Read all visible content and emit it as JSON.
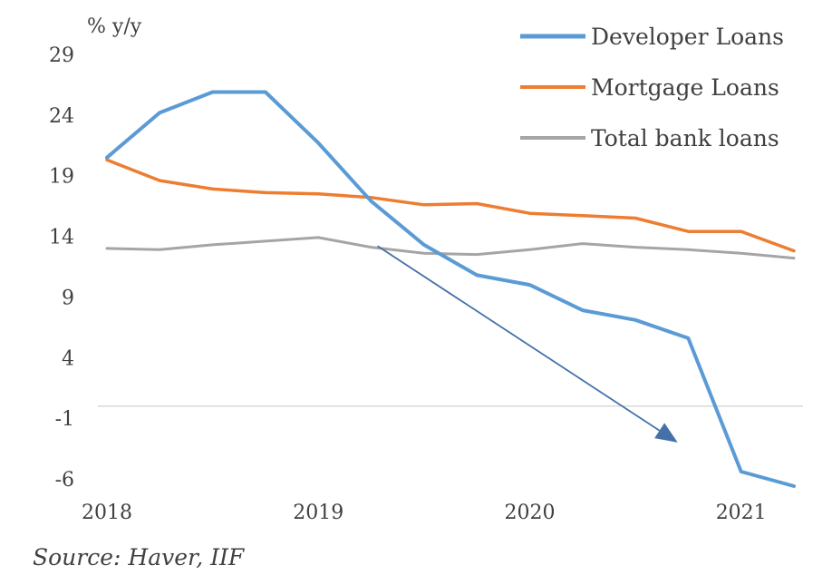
{
  "chart_data": {
    "type": "line",
    "unit_label": "% y/y",
    "ylim": [
      -6,
      29
    ],
    "y_ticks": [
      "29",
      "24",
      "19",
      "14",
      "9",
      "4",
      "-1",
      "-6"
    ],
    "x_ticks": [
      "2018",
      "2019",
      "2020",
      "2021"
    ],
    "x": [
      2018.0,
      2018.25,
      2018.5,
      2018.75,
      2019.0,
      2019.25,
      2019.5,
      2019.75,
      2020.0,
      2020.25,
      2020.5,
      2020.75,
      2021.0,
      2021.25
    ],
    "series": [
      {
        "name": "Developer Loans",
        "color": "#5B9BD5",
        "values": [
          20.5,
          24.2,
          25.9,
          25.9,
          21.7,
          16.9,
          13.3,
          10.8,
          10.0,
          7.9,
          7.1,
          5.6,
          -5.4,
          -6.6
        ]
      },
      {
        "name": "Mortgage Loans",
        "color": "#ED7D31",
        "values": [
          20.3,
          18.6,
          17.9,
          17.6,
          17.5,
          17.2,
          16.6,
          16.7,
          15.9,
          15.7,
          15.5,
          14.4,
          14.4,
          12.8
        ]
      },
      {
        "name": "Total bank loans",
        "color": "#A5A5A5",
        "values": [
          13.0,
          12.9,
          13.3,
          13.6,
          13.9,
          13.1,
          12.6,
          12.5,
          12.9,
          13.4,
          13.1,
          12.9,
          12.6,
          12.2
        ]
      }
    ],
    "annotation_arrow": {
      "from": {
        "x": 2019.28,
        "y": 13.2
      },
      "to": {
        "x": 2020.7,
        "y": -3.0
      },
      "color": "#4472A8"
    },
    "zero_line": 0,
    "grid": false,
    "legend_placement": "top-right"
  },
  "source": "Source: Haver, IIF"
}
